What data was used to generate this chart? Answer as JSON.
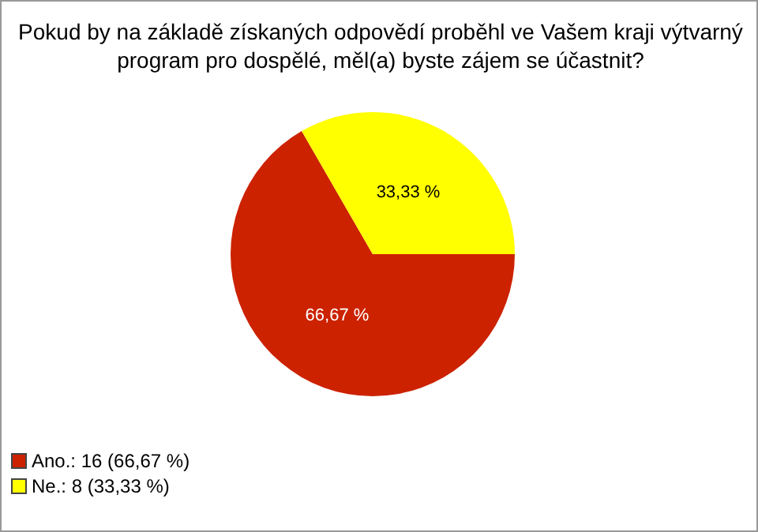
{
  "chart_data": {
    "type": "pie",
    "title": "Pokud by na základě získaných odpovědí proběhl ve Vašem kraji výtvarný program pro dospělé, měl(a) byste zájem se účastnit?",
    "categories": [
      "Ano.: 16 (66,67 %)",
      "Ne.: 8 (33,33 %)"
    ],
    "values": [
      66.67,
      33.33
    ],
    "colors": [
      "#cc2200",
      "#ffff00"
    ],
    "value_labels": [
      "66,67 %",
      "33,33 %"
    ],
    "legend": "bottom left"
  }
}
